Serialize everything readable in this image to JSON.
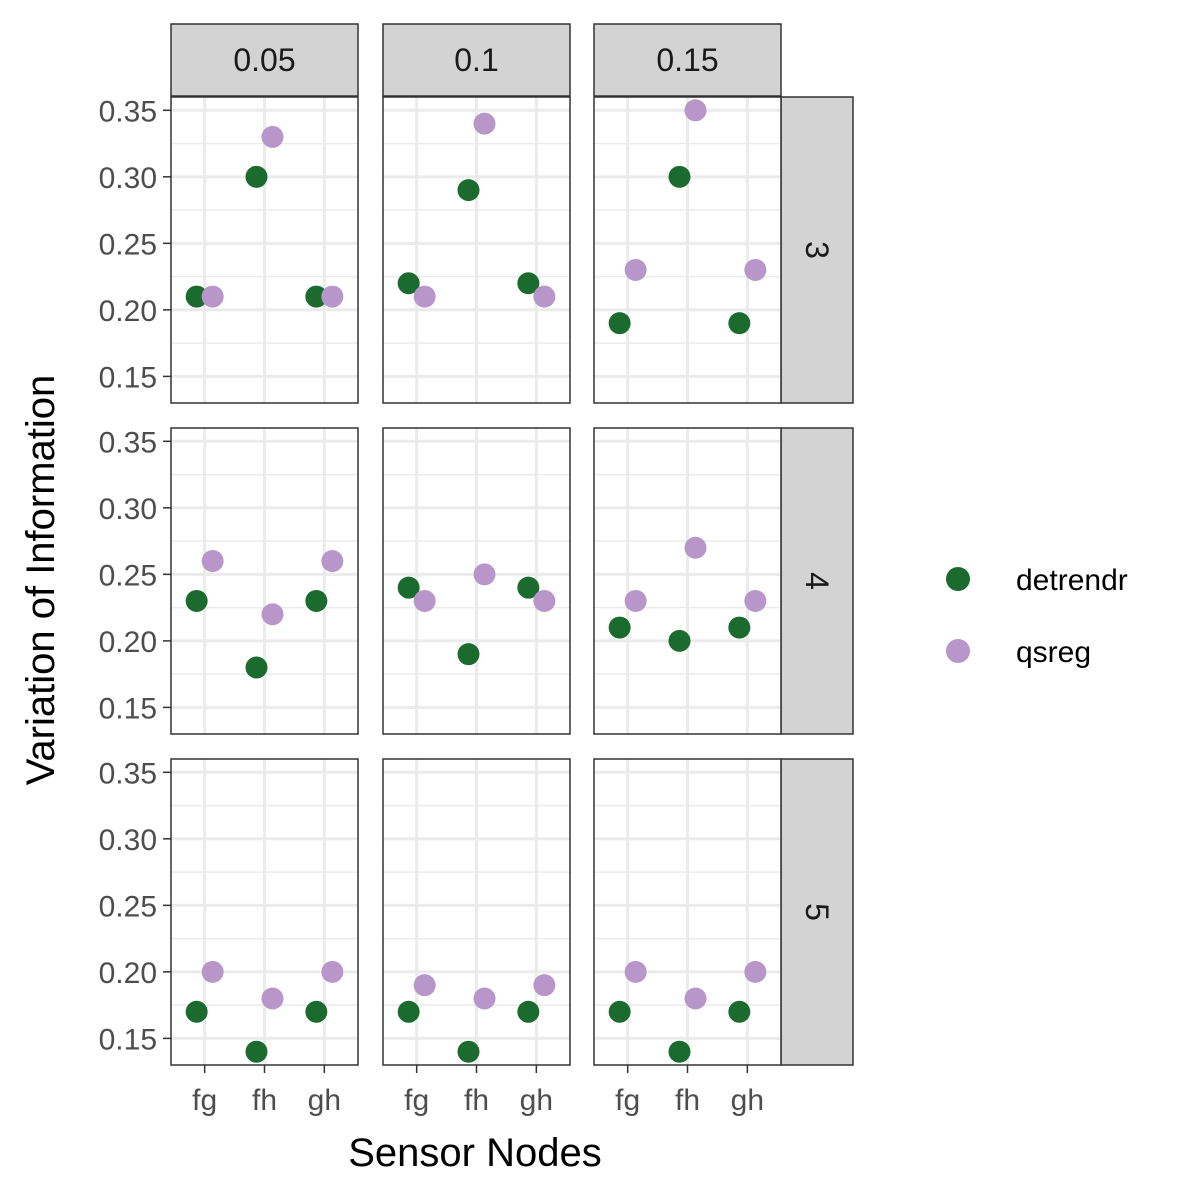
{
  "chart_data": {
    "type": "scatter",
    "xlabel": "Sensor Nodes",
    "ylabel": "Variation of Information",
    "categories": [
      "fg",
      "fh",
      "gh"
    ],
    "y_ticks": [
      "0.15",
      "0.20",
      "0.25",
      "0.30",
      "0.35"
    ],
    "ylim": [
      0.13,
      0.36
    ],
    "grid": true,
    "legend_position": "right",
    "col_facet_labels": [
      "0.05",
      "0.1",
      "0.15"
    ],
    "row_facet_labels": [
      "3",
      "4",
      "5"
    ],
    "series": [
      {
        "name": "detrendr",
        "color": "#1b6b2f"
      },
      {
        "name": "qsreg",
        "color": "#b996c9"
      }
    ],
    "panels": [
      {
        "row": "3",
        "col": "0.05",
        "detrendr": [
          0.21,
          0.3,
          0.21
        ],
        "qsreg": [
          0.21,
          0.33,
          0.21
        ]
      },
      {
        "row": "3",
        "col": "0.1",
        "detrendr": [
          0.22,
          0.29,
          0.22
        ],
        "qsreg": [
          0.21,
          0.34,
          0.21
        ]
      },
      {
        "row": "3",
        "col": "0.15",
        "detrendr": [
          0.19,
          0.3,
          0.19
        ],
        "qsreg": [
          0.23,
          0.35,
          0.23
        ]
      },
      {
        "row": "4",
        "col": "0.05",
        "detrendr": [
          0.23,
          0.18,
          0.23
        ],
        "qsreg": [
          0.26,
          0.22,
          0.26
        ]
      },
      {
        "row": "4",
        "col": "0.1",
        "detrendr": [
          0.24,
          0.19,
          0.24
        ],
        "qsreg": [
          0.23,
          0.25,
          0.23
        ]
      },
      {
        "row": "4",
        "col": "0.15",
        "detrendr": [
          0.21,
          0.2,
          0.21
        ],
        "qsreg": [
          0.23,
          0.27,
          0.23
        ]
      },
      {
        "row": "5",
        "col": "0.05",
        "detrendr": [
          0.17,
          0.14,
          0.17
        ],
        "qsreg": [
          0.2,
          0.18,
          0.2
        ]
      },
      {
        "row": "5",
        "col": "0.1",
        "detrendr": [
          0.17,
          0.14,
          0.17
        ],
        "qsreg": [
          0.19,
          0.18,
          0.19
        ]
      },
      {
        "row": "5",
        "col": "0.15",
        "detrendr": [
          0.17,
          0.14,
          0.17
        ],
        "qsreg": [
          0.2,
          0.18,
          0.2
        ]
      }
    ]
  }
}
